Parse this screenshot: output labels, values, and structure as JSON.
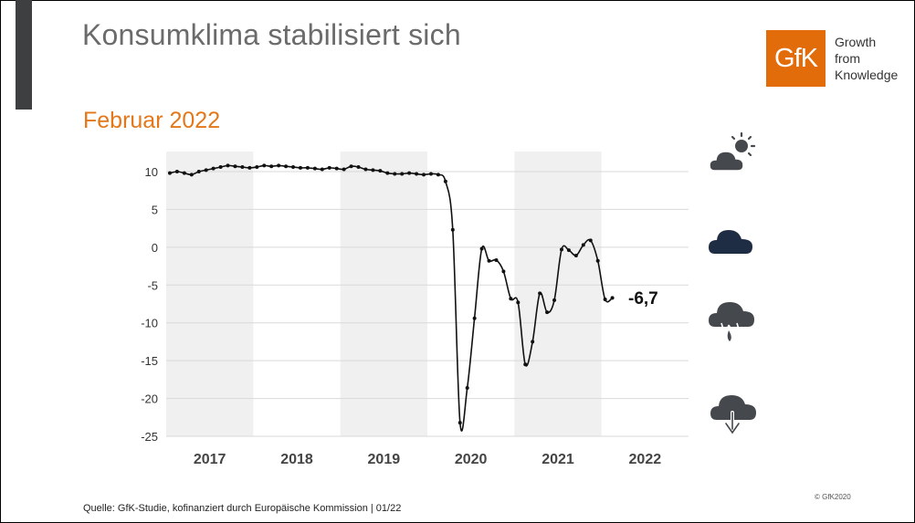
{
  "title": "Konsumklima stabilisiert sich",
  "subtitle": "Februar 2022",
  "logo": {
    "mark": "GfK",
    "lines": [
      "Growth",
      "from",
      "Knowledge"
    ],
    "color": "#e36c0a"
  },
  "source": "Quelle: GfK-Studie, kofinanziert durch Europäische Kommission | 01/22",
  "copyright": "© GfK2020",
  "colors": {
    "title": "#6b6b6b",
    "subtitle": "#e3781a",
    "accent_bar": "#3d3f41",
    "shade": "#f0f0f0",
    "line": "#111111",
    "icon_gray": "#45494d",
    "icon_navy": "#1f2d44"
  },
  "weather_icons": [
    "sun-behind-cloud-icon",
    "cloud-icon",
    "cloud-rain-icon",
    "cloud-down-arrow-icon"
  ],
  "chart_data": {
    "type": "line",
    "title": "",
    "xlabel": "",
    "ylabel": "",
    "ylim": [
      -25,
      10
    ],
    "yticks": [
      10,
      5,
      0,
      -5,
      -10,
      -15,
      -20,
      -25
    ],
    "ytick_labels": [
      "10",
      "5",
      "0",
      "-5",
      "-10",
      "-15",
      "-20",
      "-25"
    ],
    "categories": [
      "2017",
      "2018",
      "2019",
      "2020",
      "2021",
      "2022"
    ],
    "shaded_years": [
      "2017",
      "2019",
      "2021"
    ],
    "grid": true,
    "last_value_label": "-6,7",
    "series": [
      {
        "name": "",
        "points": [
          [
            "2017-01",
            9.8
          ],
          [
            "2017-02",
            10.0
          ],
          [
            "2017-03",
            9.8
          ],
          [
            "2017-04",
            9.6
          ],
          [
            "2017-05",
            10.0
          ],
          [
            "2017-06",
            10.2
          ],
          [
            "2017-07",
            10.4
          ],
          [
            "2017-08",
            10.6
          ],
          [
            "2017-09",
            10.8
          ],
          [
            "2017-10",
            10.7
          ],
          [
            "2017-11",
            10.6
          ],
          [
            "2017-12",
            10.5
          ],
          [
            "2018-01",
            10.6
          ],
          [
            "2018-02",
            10.8
          ],
          [
            "2018-03",
            10.7
          ],
          [
            "2018-04",
            10.8
          ],
          [
            "2018-05",
            10.7
          ],
          [
            "2018-06",
            10.6
          ],
          [
            "2018-07",
            10.5
          ],
          [
            "2018-08",
            10.5
          ],
          [
            "2018-09",
            10.4
          ],
          [
            "2018-10",
            10.3
          ],
          [
            "2018-11",
            10.5
          ],
          [
            "2018-12",
            10.4
          ],
          [
            "2019-01",
            10.3
          ],
          [
            "2019-02",
            10.7
          ],
          [
            "2019-03",
            10.6
          ],
          [
            "2019-04",
            10.3
          ],
          [
            "2019-05",
            10.2
          ],
          [
            "2019-06",
            10.1
          ],
          [
            "2019-07",
            9.8
          ],
          [
            "2019-08",
            9.7
          ],
          [
            "2019-09",
            9.7
          ],
          [
            "2019-10",
            9.8
          ],
          [
            "2019-11",
            9.7
          ],
          [
            "2019-12",
            9.6
          ],
          [
            "2020-01",
            9.7
          ],
          [
            "2020-02",
            9.6
          ],
          [
            "2020-03",
            8.7
          ],
          [
            "2020-04",
            2.3
          ],
          [
            "2020-05",
            -23.2
          ],
          [
            "2020-06",
            -18.6
          ],
          [
            "2020-07",
            -9.4
          ],
          [
            "2020-08",
            -0.2
          ],
          [
            "2020-09",
            -1.8
          ],
          [
            "2020-10",
            -1.7
          ],
          [
            "2020-11",
            -3.2
          ],
          [
            "2020-12",
            -6.8
          ],
          [
            "2021-01",
            -7.3
          ],
          [
            "2021-02",
            -15.5
          ],
          [
            "2021-03",
            -12.5
          ],
          [
            "2021-04",
            -6.1
          ],
          [
            "2021-05",
            -8.6
          ],
          [
            "2021-06",
            -7.0
          ],
          [
            "2021-07",
            -0.3
          ],
          [
            "2021-08",
            -0.4
          ],
          [
            "2021-09",
            -1.1
          ],
          [
            "2021-10",
            0.3
          ],
          [
            "2021-11",
            0.9
          ],
          [
            "2021-12",
            -1.8
          ],
          [
            "2022-01",
            -6.9
          ],
          [
            "2022-02",
            -6.7
          ]
        ]
      }
    ]
  }
}
